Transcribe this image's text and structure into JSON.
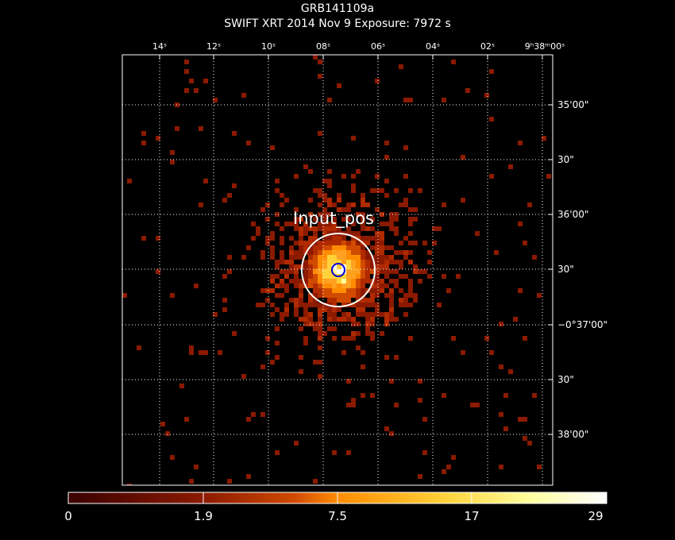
{
  "header": {
    "title": "GRB141109a",
    "subtitle": "SWIFT XRT   2014 Nov  9    Exposure: 7972 s"
  },
  "ra_ticks": [
    {
      "label": "14ˢ"
    },
    {
      "label": "12ˢ"
    },
    {
      "label": "10ˢ"
    },
    {
      "label": "08ˢ"
    },
    {
      "label": "06ˢ"
    },
    {
      "label": "04ˢ"
    },
    {
      "label": "02ˢ"
    },
    {
      "label": "9ʰ38ᵐ00ˢ"
    }
  ],
  "dec_ticks": [
    {
      "label": "35'00\""
    },
    {
      "label": "30\""
    },
    {
      "label": "36'00\""
    },
    {
      "label": "30\""
    },
    {
      "label": "−0°37'00\""
    },
    {
      "label": "30\""
    },
    {
      "label": "38'00\""
    }
  ],
  "source_label": "Input_pos",
  "colorbar": {
    "labels": [
      "0",
      "1.9",
      "7.5",
      "17",
      "29"
    ],
    "colors": [
      "#3a0000",
      "#8b1a00",
      "#d04a00",
      "#ff8c00",
      "#ffd23a",
      "#ffffa0",
      "#ffffff"
    ]
  },
  "colors": {
    "background": "#000000",
    "grid": "#ffffff",
    "source_circle": "#ffffff",
    "input_marker": "#0000cc"
  }
}
